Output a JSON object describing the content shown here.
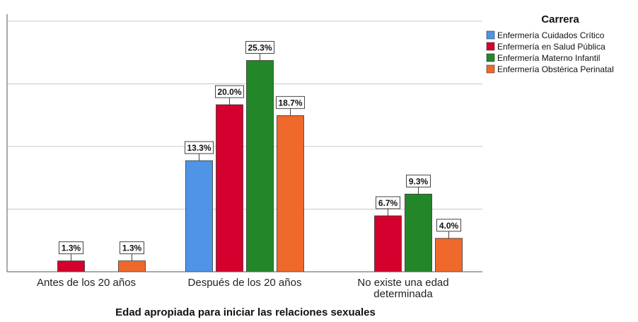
{
  "chart_data": {
    "type": "bar",
    "title": "",
    "xlabel": "Edad apropiada para iniciar las relaciones sexuales",
    "ylabel": "",
    "ylim": [
      0,
      30
    ],
    "grid": true,
    "categories": [
      [
        "Antes de los 20 años"
      ],
      [
        "Después de los 20 años"
      ],
      [
        "No existe una edad",
        "determinada"
      ]
    ],
    "legend": {
      "title": "Carrera",
      "placement": "top-right"
    },
    "series": [
      {
        "name": "Enfermería Cuidados Crítico",
        "color": "#4f94e6",
        "values": [
          null,
          13.3,
          null
        ],
        "labels": [
          "",
          "13.3%",
          ""
        ]
      },
      {
        "name": "Enfermería en Salud Pública",
        "color": "#d4002e",
        "values": [
          1.3,
          20.0,
          6.7
        ],
        "labels": [
          "1.3%",
          "20.0%",
          "6.7%"
        ]
      },
      {
        "name": "Enfermería Materno Infantil",
        "color": "#23872a",
        "values": [
          null,
          25.3,
          9.3
        ],
        "labels": [
          "",
          "25.3%",
          "9.3%"
        ]
      },
      {
        "name": "Enfermería Obstérica Perinatal",
        "color": "#f0692c",
        "values": [
          1.3,
          18.7,
          4.0
        ],
        "labels": [
          "1.3%",
          "18.7%",
          "4.0%"
        ]
      }
    ]
  }
}
